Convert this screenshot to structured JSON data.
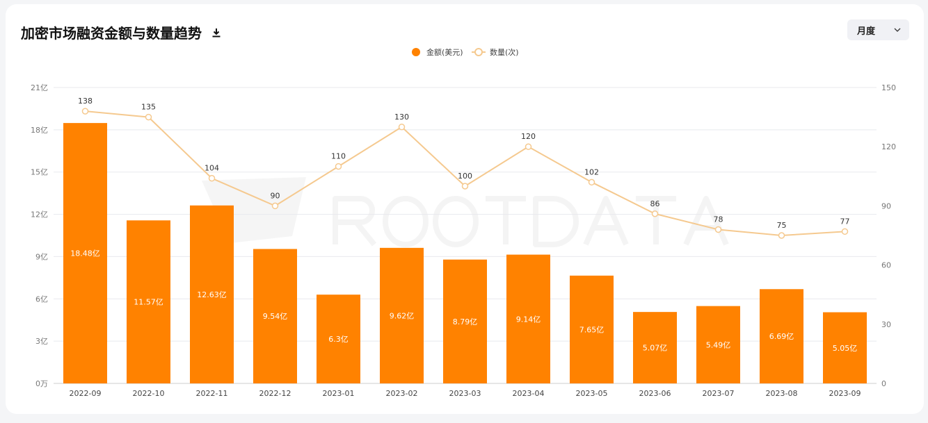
{
  "header": {
    "title": "加密市场融资金额与数量趋势",
    "download_icon": "download-icon"
  },
  "period_select": {
    "value": "月度",
    "icon": "chevron-down-icon"
  },
  "watermark": "ROOTDATA",
  "colors": {
    "bar": "#ff8200",
    "line": "#f5c98f",
    "grid": "#e8e9ee",
    "axis_text": "#777"
  },
  "chart_data": {
    "type": "bar+line",
    "categories": [
      "2022-09",
      "2022-10",
      "2022-11",
      "2022-12",
      "2023-01",
      "2023-02",
      "2023-03",
      "2023-04",
      "2023-05",
      "2023-06",
      "2023-07",
      "2023-08",
      "2023-09"
    ],
    "legend_position": "top-center",
    "grid": true,
    "series": [
      {
        "name": "金额(美元)",
        "type": "bar",
        "axis": "left",
        "values": [
          18.48,
          11.57,
          12.63,
          9.54,
          6.3,
          9.62,
          8.79,
          9.14,
          7.65,
          5.07,
          5.49,
          6.69,
          5.05
        ],
        "labels": [
          "18.48亿",
          "11.57亿",
          "12.63亿",
          "9.54亿",
          "6.3亿",
          "9.62亿",
          "8.79亿",
          "9.14亿",
          "7.65亿",
          "5.07亿",
          "5.49亿",
          "6.69亿",
          "5.05亿"
        ]
      },
      {
        "name": "数量(次)",
        "type": "line",
        "axis": "right",
        "values": [
          138,
          135,
          104,
          90,
          110,
          130,
          100,
          120,
          102,
          86,
          78,
          75,
          77
        ]
      }
    ],
    "y_left": {
      "range": [
        0,
        21
      ],
      "unit": "亿",
      "ticks": [
        "0万",
        "3亿",
        "6亿",
        "9亿",
        "12亿",
        "15亿",
        "18亿",
        "21亿"
      ]
    },
    "y_right": {
      "range": [
        0,
        150
      ],
      "ticks": [
        "0",
        "30",
        "60",
        "90",
        "120",
        "150"
      ]
    }
  }
}
